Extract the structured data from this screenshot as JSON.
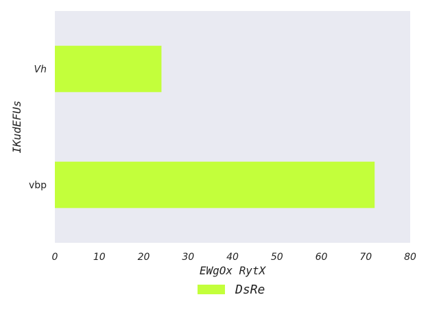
{
  "chart_data": {
    "type": "bar",
    "orientation": "horizontal",
    "categories": [
      "Vh",
      "vbp"
    ],
    "series": [
      {
        "name": "DsRe",
        "values": [
          24,
          72
        ],
        "color": "#c3ff3b"
      }
    ],
    "xlabel": "EWgOx RytX",
    "ylabel": "IKudEFUs",
    "xlim": [
      0,
      80
    ],
    "xticks": [
      0,
      10,
      20,
      30,
      40,
      50,
      60,
      70,
      80
    ],
    "grid": false,
    "background": "#e9eaf2",
    "legend_position": "bottom-center"
  }
}
